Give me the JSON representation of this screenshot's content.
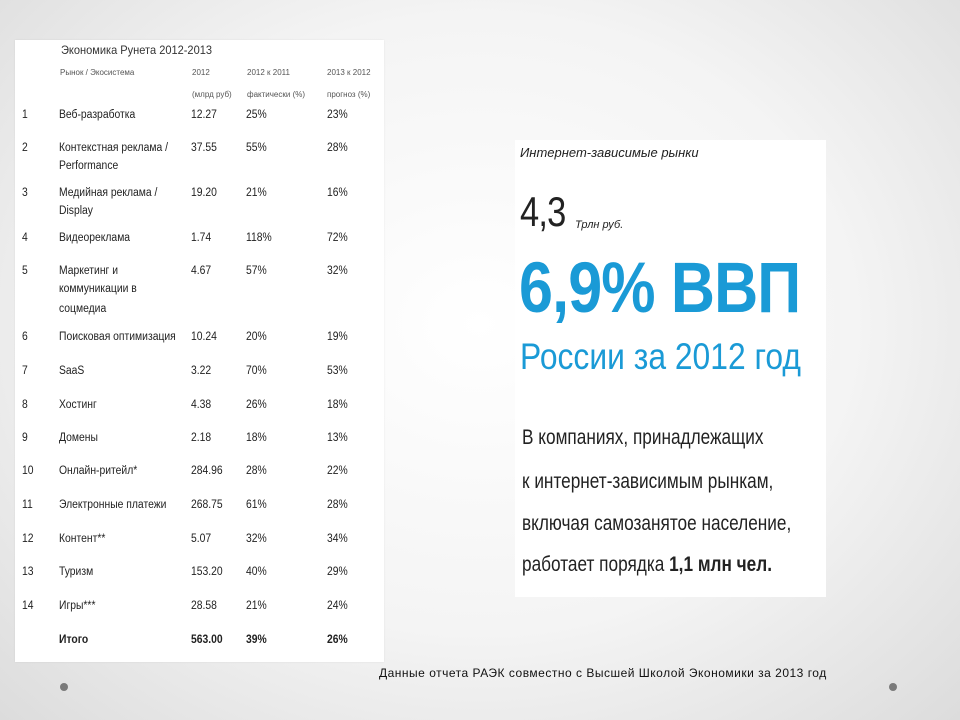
{
  "table": {
    "title": "Экономика Рунета 2012-2013",
    "headers": {
      "market": "Рынок / Экосистема",
      "y2012_a": "2012",
      "y2012_b": "(млрд руб)",
      "growth_a": "2012 к 2011",
      "growth_b": "фактически (%)",
      "forecast_a": "2013 к 2012",
      "forecast_b": "прогноз (%)"
    },
    "rows": [
      {
        "num": "1",
        "name": [
          "Веб-разработка"
        ],
        "v2012": "12.27",
        "growth": "25%",
        "forecast": "23%"
      },
      {
        "num": "2",
        "name": [
          "Контекстная реклама /",
          "Performance"
        ],
        "v2012": "37.55",
        "growth": "55%",
        "forecast": "28%"
      },
      {
        "num": "3",
        "name": [
          "Медийная реклама /",
          "Display"
        ],
        "v2012": "19.20",
        "growth": "21%",
        "forecast": "16%"
      },
      {
        "num": "4",
        "name": [
          "Видеореклама"
        ],
        "v2012": "1.74",
        "growth": "118%",
        "forecast": "72%"
      },
      {
        "num": "5",
        "name": [
          "Маркетинг и",
          "коммуникации в",
          "соцмедиа"
        ],
        "v2012": "4.67",
        "growth": "57%",
        "forecast": "32%"
      },
      {
        "num": "6",
        "name": [
          "Поисковая оптимизация"
        ],
        "v2012": "10.24",
        "growth": "20%",
        "forecast": "19%"
      },
      {
        "num": "7",
        "name": [
          "SaaS"
        ],
        "v2012": "3.22",
        "growth": "70%",
        "forecast": "53%"
      },
      {
        "num": "8",
        "name": [
          "Хостинг"
        ],
        "v2012": "4.38",
        "growth": "26%",
        "forecast": "18%"
      },
      {
        "num": "9",
        "name": [
          "Домены"
        ],
        "v2012": "2.18",
        "growth": "18%",
        "forecast": "13%"
      },
      {
        "num": "10",
        "name": [
          "Онлайн-ритейл*"
        ],
        "v2012": "284.96",
        "growth": "28%",
        "forecast": "22%"
      },
      {
        "num": "11",
        "name": [
          "Электронные платежи"
        ],
        "v2012": "268.75",
        "growth": "61%",
        "forecast": "28%"
      },
      {
        "num": "12",
        "name": [
          "Контент**"
        ],
        "v2012": "5.07",
        "growth": "32%",
        "forecast": "34%"
      },
      {
        "num": "13",
        "name": [
          "Туризм"
        ],
        "v2012": "153.20",
        "growth": "40%",
        "forecast": "29%"
      },
      {
        "num": "14",
        "name": [
          "Игры***"
        ],
        "v2012": "28.58",
        "growth": "21%",
        "forecast": "24%"
      }
    ],
    "total": {
      "num": "",
      "name": [
        "Итого"
      ],
      "v2012": "563.00",
      "growth": "39%",
      "forecast": "26%"
    }
  },
  "infographic": {
    "caption": "Интернет-зависимые рынки",
    "big_number": "4,3",
    "big_unit": "Трлн руб.",
    "gdp_text": "6,9% ВВП",
    "russia_text": "России за 2012 год",
    "body_line_1": "В компаниях, принадлежащих",
    "body_line_2": "к интернет-зависимым рынкам,",
    "body_line_3": "включая самозанятое население,",
    "body_line_4_prefix": "работает порядка ",
    "body_line_4_highlight": "1,1 млн чел."
  },
  "source_note": "Данные отчета РАЭК совместно с Высшей Школой Экономики за 2013 год",
  "colors": {
    "accent_blue": "#1a9ad6",
    "bullet": "#7a7a7a"
  }
}
